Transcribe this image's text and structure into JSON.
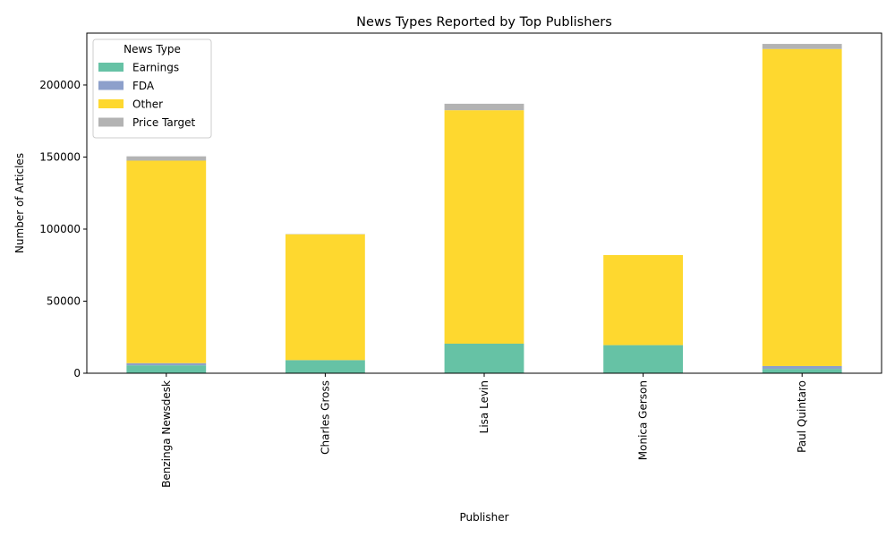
{
  "chart_data": {
    "type": "bar",
    "stacked": true,
    "title": "News Types Reported by Top Publishers",
    "xlabel": "Publisher",
    "ylabel": "Number of Articles",
    "categories": [
      "Benzinga Newsdesk",
      "Charles Gross",
      "Lisa Levin",
      "Monica Gerson",
      "Paul Quintaro"
    ],
    "series": [
      {
        "name": "Earnings",
        "color": "#66c2a5",
        "values": [
          5500,
          9000,
          20500,
          19500,
          3000
        ]
      },
      {
        "name": "FDA",
        "color": "#8da0cb",
        "values": [
          1500,
          100,
          0,
          0,
          2000
        ]
      },
      {
        "name": "Other",
        "color": "#fed82f",
        "values": [
          140500,
          87300,
          162000,
          62500,
          220000
        ]
      },
      {
        "name": "Price Target",
        "color": "#b3b3b3",
        "values": [
          3000,
          200,
          4500,
          0,
          3500
        ]
      }
    ],
    "ylim": [
      0,
      236000
    ],
    "yticks": [
      0,
      50000,
      100000,
      150000,
      200000
    ],
    "legend": {
      "title": "News Type",
      "position": "top-left"
    },
    "grid": false
  }
}
